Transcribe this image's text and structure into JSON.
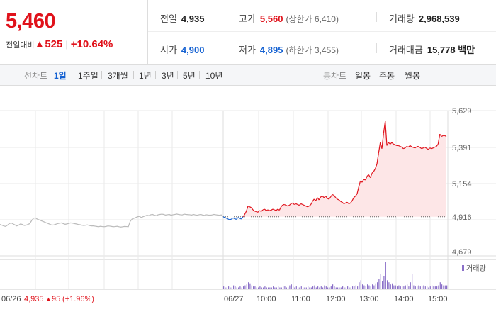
{
  "quote": {
    "price": "5,460",
    "change_label": "전일대비",
    "change_arrow": "▲",
    "change_value": "525",
    "change_pct": "+10.64%"
  },
  "stats": {
    "prev_close": {
      "label": "전일",
      "value": "4,935"
    },
    "high": {
      "label": "고가",
      "value": "5,560",
      "sub": "(상한가 6,410)"
    },
    "volume": {
      "label": "거래량",
      "value": "2,968,539"
    },
    "open": {
      "label": "시가",
      "value": "4,900"
    },
    "low": {
      "label": "저가",
      "value": "4,895",
      "sub": "(하한가 3,455)"
    },
    "amount": {
      "label": "거래대금",
      "value": "15,778 백만"
    }
  },
  "toolbar": {
    "line_title": "선차트",
    "line_items": [
      "1일",
      "1주일",
      "3개월",
      "1년",
      "3년",
      "5년",
      "10년"
    ],
    "line_active": "1일",
    "candle_title": "봉차트",
    "candle_items": [
      "일봉",
      "주봉",
      "월봉"
    ]
  },
  "chart_data": {
    "type": "line",
    "y_ticks": [
      "5,629",
      "5,391",
      "5,154",
      "4,916",
      "4,679"
    ],
    "ylim": [
      4679,
      5629
    ],
    "reference_value": 4935,
    "x_ticks": [
      "06/27",
      "10:00",
      "11:00",
      "12:00",
      "13:00",
      "14:00",
      "15:00"
    ],
    "prev_day_label": "06/26",
    "prev_day_close": "4,935",
    "prev_day_change_arrow": "▲",
    "prev_day_change": "95",
    "prev_day_change_pct": "(+1.96%)",
    "volume_legend": "거래량",
    "colors": {
      "up": "#e0121b",
      "down": "#1461d2",
      "prev": "#bbbbbb",
      "fill": "#fde6e7",
      "volume": "#8a6fc8"
    },
    "prev_day_series": [
      4885,
      4880,
      4875,
      4872,
      4880,
      4890,
      4895,
      4888,
      4882,
      4875,
      4880,
      4888,
      4885,
      4878,
      4880,
      4885,
      4890,
      4910,
      4925,
      4928,
      4920,
      4915,
      4910,
      4905,
      4900,
      4895,
      4890,
      4885,
      4880,
      4882,
      4886,
      4890,
      4893,
      4895,
      4890,
      4886,
      4888,
      4892,
      4895,
      4893,
      4890,
      4888,
      4885,
      4883,
      4880,
      4878,
      4880,
      4882,
      4878,
      4875,
      4876,
      4874,
      4872,
      4870,
      4873,
      4871,
      4870,
      4872,
      4875,
      4874,
      4872,
      4870,
      4871,
      4873,
      4870,
      4868,
      4870,
      4872,
      4871,
      4870,
      4905,
      4920,
      4925,
      4930,
      4935,
      4938,
      4930,
      4936,
      4940,
      4945,
      4942,
      4948,
      4950,
      4945,
      4942,
      4948,
      4950,
      4952,
      4950,
      4946,
      4948,
      4950,
      4945,
      4948,
      4950,
      4953,
      4950,
      4948,
      4947,
      4952,
      4950,
      4949,
      4948,
      4946,
      4950,
      4947,
      4945,
      4948,
      4950,
      4946,
      4944,
      4948,
      4946,
      4945,
      4947,
      4950,
      4948,
      4946,
      4945,
      4947,
      4935
    ],
    "series": [
      4935,
      4930,
      4925,
      4920,
      4915,
      4920,
      4928,
      4922,
      4918,
      4930,
      4925,
      4920,
      4935,
      4950,
      4972,
      5005,
      5000,
      4995,
      4980,
      4972,
      4968,
      4965,
      4975,
      4970,
      4980,
      4985,
      4975,
      4980,
      4975,
      4978,
      4985,
      4980,
      4975,
      4985,
      4978,
      5000,
      5012,
      5015,
      5010,
      5005,
      5010,
      5020,
      5025,
      5015,
      5020,
      5015,
      5010,
      5020,
      5015,
      5010,
      5005,
      5000,
      5005,
      5015,
      5035,
      5050,
      5040,
      5060,
      5045,
      5065,
      5070,
      5060,
      5070,
      5055,
      5050,
      5065,
      5080,
      5075,
      5060,
      5050,
      5045,
      5035,
      5030,
      5020,
      5025,
      5030,
      5020,
      5025,
      5040,
      5060,
      5070,
      5085,
      5130,
      5170,
      5160,
      5180,
      5175,
      5200,
      5210,
      5190,
      5220,
      5230,
      5250,
      5280,
      5350,
      5420,
      5380,
      5480,
      5560,
      5400,
      5420,
      5410,
      5420,
      5410,
      5405,
      5400,
      5400,
      5395,
      5390,
      5380,
      5385,
      5395,
      5390,
      5400,
      5392,
      5388,
      5385,
      5392,
      5395,
      5388,
      5380,
      5385,
      5390,
      5382,
      5375,
      5385,
      5380,
      5385,
      5390,
      5395,
      5410,
      5475,
      5460,
      5465,
      5465,
      5460
    ],
    "volume": [
      2,
      1,
      1,
      2,
      1,
      1,
      3,
      2,
      1,
      1,
      2,
      1,
      2,
      3,
      4,
      6,
      5,
      3,
      2,
      2,
      1,
      1,
      2,
      1,
      1,
      2,
      1,
      1,
      1,
      1,
      2,
      1,
      1,
      2,
      1,
      1,
      2,
      2,
      1,
      1,
      3,
      4,
      2,
      1,
      2,
      1,
      1,
      2,
      1,
      1,
      1,
      2,
      1,
      1,
      2,
      3,
      1,
      2,
      1,
      2,
      1,
      3,
      2,
      1,
      1,
      2,
      4,
      2,
      1,
      1,
      1,
      1,
      2,
      1,
      1,
      2,
      1,
      1,
      2,
      2,
      3,
      2,
      6,
      8,
      4,
      3,
      2,
      4,
      3,
      2,
      4,
      3,
      5,
      6,
      9,
      14,
      7,
      12,
      26,
      8,
      6,
      4,
      5,
      3,
      3,
      2,
      3,
      2,
      2,
      2,
      3,
      4,
      2,
      6,
      14,
      3,
      2,
      2,
      3,
      2,
      2,
      3,
      2,
      2,
      1,
      2,
      3,
      2,
      2,
      2,
      3,
      6,
      4,
      3,
      3,
      3
    ]
  }
}
